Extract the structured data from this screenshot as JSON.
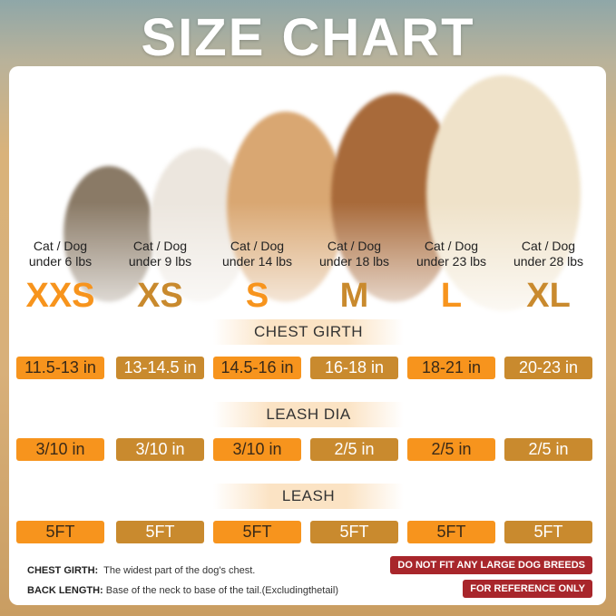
{
  "title": "SIZE CHART",
  "sizes": [
    {
      "label": "XXS",
      "weight_line1": "Cat / Dog",
      "weight_line2": "under 6 lbs",
      "chest_girth": "11.5-13 in",
      "leash_dia": "3/10 in",
      "leash": "5FT",
      "style": "orange"
    },
    {
      "label": "XS",
      "weight_line1": "Cat / Dog",
      "weight_line2": "under 9 lbs",
      "chest_girth": "13-14.5 in",
      "leash_dia": "3/10 in",
      "leash": "5FT",
      "style": "brown"
    },
    {
      "label": "S",
      "weight_line1": "Cat / Dog",
      "weight_line2": "under 14 lbs",
      "chest_girth": "14.5-16 in",
      "leash_dia": "3/10 in",
      "leash": "5FT",
      "style": "orange"
    },
    {
      "label": "M",
      "weight_line1": "Cat / Dog",
      "weight_line2": "under 18 lbs",
      "chest_girth": "16-18 in",
      "leash_dia": "2/5 in",
      "leash": "5FT",
      "style": "brown"
    },
    {
      "label": "L",
      "weight_line1": "Cat / Dog",
      "weight_line2": "under 23 lbs",
      "chest_girth": "18-21 in",
      "leash_dia": "2/5 in",
      "leash": "5FT",
      "style": "orange"
    },
    {
      "label": "XL",
      "weight_line1": "Cat / Dog",
      "weight_line2": "under 28 lbs",
      "chest_girth": "20-23 in",
      "leash_dia": "2/5 in",
      "leash": "5FT",
      "style": "brown"
    }
  ],
  "sections": {
    "chest_girth": "CHEST GIRTH",
    "leash_dia": "LEASH DIA",
    "leash": "LEASH"
  },
  "notes": [
    {
      "term": "CHEST GIRTH:",
      "text": "The widest part of the dog's chest."
    },
    {
      "term": "BACK LENGTH:",
      "text": "Base of the neck to base of the tail.(Excludingthetail)"
    }
  ],
  "badges": [
    "DO NOT FIT ANY LARGE DOG BREEDS",
    "FOR REFERENCE ONLY"
  ],
  "colors": {
    "orange": "#f7941d",
    "brown": "#c98a2e",
    "badge": "#a8262b"
  }
}
